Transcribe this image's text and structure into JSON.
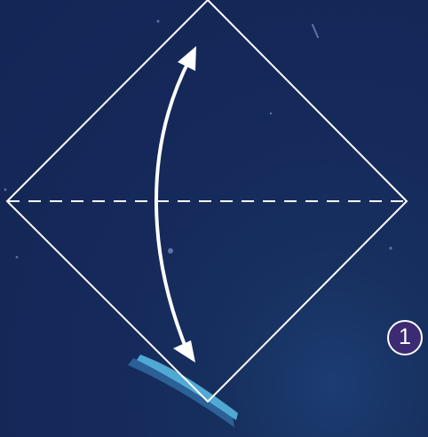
{
  "step": {
    "number": "1"
  },
  "colors": {
    "background": "#142656",
    "line": "#ffffff",
    "badge_fill": "#3c2a72",
    "paper_edge": "#57b6e0"
  },
  "figure": {
    "shape": "square-diamond",
    "fold_line_style": "dashed",
    "fold_direction": "vertical",
    "arrow": "double-headed-curved-arrow"
  }
}
